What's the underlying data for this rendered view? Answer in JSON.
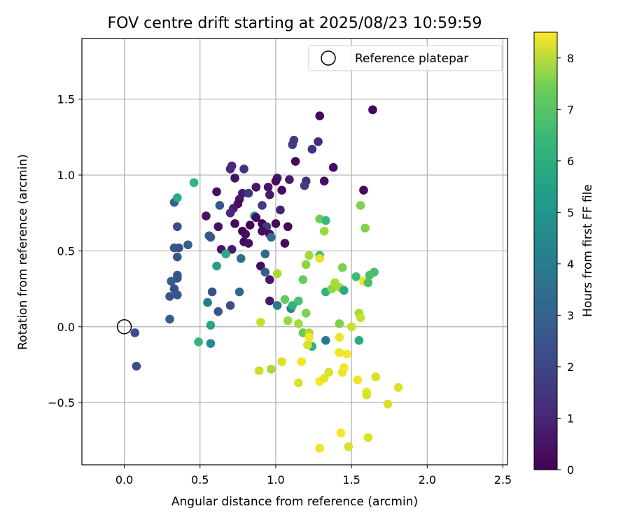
{
  "chart_data": {
    "type": "scatter",
    "title": "FOV centre drift starting at 2025/08/23 10:59:59",
    "xlabel": "Angular distance from reference (arcmin)",
    "ylabel": "Rotation from reference (arcmin)",
    "xlim": [
      -0.28,
      2.53
    ],
    "ylim": [
      -0.91,
      1.9
    ],
    "xticks": [
      "0.0",
      "0.5",
      "1.0",
      "1.5",
      "2.0",
      "2.5"
    ],
    "xtick_values": [
      0,
      0.5,
      1.0,
      1.5,
      2.0,
      2.5
    ],
    "yticks": [
      "−0.5",
      "0.0",
      "0.5",
      "1.0",
      "1.5"
    ],
    "ytick_values": [
      -0.5,
      0,
      0.5,
      1.0,
      1.5
    ],
    "grid": true,
    "legend": {
      "placement": "top-right",
      "entries": [
        "Reference platepar"
      ]
    },
    "reference": {
      "name": "Reference platepar",
      "x": 0,
      "y": 0
    },
    "colorbar": {
      "label": "Hours from first FF file",
      "range": [
        0,
        8.5
      ],
      "ticks": [
        "0",
        "1",
        "2",
        "3",
        "4",
        "5",
        "6",
        "7",
        "8"
      ],
      "tick_values": [
        0,
        1,
        2,
        3,
        4,
        5,
        6,
        7,
        8
      ],
      "colormap": "viridis"
    },
    "points": [
      {
        "x": 1.64,
        "y": 1.43,
        "h": 0.2
      },
      {
        "x": 1.29,
        "y": 1.39,
        "h": 0.2
      },
      {
        "x": 1.28,
        "y": 1.22,
        "h": 1.0
      },
      {
        "x": 1.24,
        "y": 1.17,
        "h": 1.2
      },
      {
        "x": 1.12,
        "y": 1.23,
        "h": 1.5
      },
      {
        "x": 1.11,
        "y": 1.2,
        "h": 1.5
      },
      {
        "x": 1.38,
        "y": 1.05,
        "h": 0.3
      },
      {
        "x": 1.13,
        "y": 1.09,
        "h": 0.2
      },
      {
        "x": 0.71,
        "y": 1.06,
        "h": 1.0
      },
      {
        "x": 0.7,
        "y": 1.04,
        "h": 1.0
      },
      {
        "x": 0.79,
        "y": 1.04,
        "h": 1.2
      },
      {
        "x": 0.73,
        "y": 0.98,
        "h": 0.4
      },
      {
        "x": 1.01,
        "y": 0.98,
        "h": 0.5
      },
      {
        "x": 1.0,
        "y": 0.96,
        "h": 0.3
      },
      {
        "x": 1.09,
        "y": 0.97,
        "h": 0.6
      },
      {
        "x": 1.2,
        "y": 0.96,
        "h": 1.2
      },
      {
        "x": 1.19,
        "y": 0.93,
        "h": 1.5
      },
      {
        "x": 1.32,
        "y": 0.96,
        "h": 0.3
      },
      {
        "x": 1.58,
        "y": 0.9,
        "h": 0.2
      },
      {
        "x": 0.61,
        "y": 0.89,
        "h": 0.3
      },
      {
        "x": 0.78,
        "y": 0.88,
        "h": 0.7
      },
      {
        "x": 0.82,
        "y": 0.88,
        "h": 1.4
      },
      {
        "x": 0.95,
        "y": 0.92,
        "h": 0.5
      },
      {
        "x": 0.96,
        "y": 0.87,
        "h": 0.6
      },
      {
        "x": 1.04,
        "y": 0.9,
        "h": 0.3
      },
      {
        "x": 0.87,
        "y": 0.92,
        "h": 0.5
      },
      {
        "x": 0.76,
        "y": 0.84,
        "h": 0.5
      },
      {
        "x": 0.75,
        "y": 0.81,
        "h": 0.3
      },
      {
        "x": 0.91,
        "y": 0.8,
        "h": 1.5
      },
      {
        "x": 0.33,
        "y": 0.82,
        "h": 2.5
      },
      {
        "x": 0.35,
        "y": 0.85,
        "h": 5.2
      },
      {
        "x": 0.63,
        "y": 0.8,
        "h": 2.3
      },
      {
        "x": 0.46,
        "y": 0.95,
        "h": 5.5
      },
      {
        "x": 0.72,
        "y": 0.78,
        "h": 0.6
      },
      {
        "x": 0.7,
        "y": 0.75,
        "h": 1.0
      },
      {
        "x": 1.03,
        "y": 0.77,
        "h": 0.8
      },
      {
        "x": 0.54,
        "y": 0.73,
        "h": 0.4
      },
      {
        "x": 0.86,
        "y": 0.73,
        "h": 4.5
      },
      {
        "x": 0.87,
        "y": 0.72,
        "h": 0.2
      },
      {
        "x": 0.73,
        "y": 0.68,
        "h": 0.2
      },
      {
        "x": 0.62,
        "y": 0.66,
        "h": 0.4
      },
      {
        "x": 0.35,
        "y": 0.66,
        "h": 2.0
      },
      {
        "x": 0.83,
        "y": 0.67,
        "h": 0.1
      },
      {
        "x": 0.91,
        "y": 0.68,
        "h": 0.1
      },
      {
        "x": 0.94,
        "y": 0.66,
        "h": 1.5
      },
      {
        "x": 0.96,
        "y": 0.61,
        "h": 0.2
      },
      {
        "x": 1.0,
        "y": 0.68,
        "h": 0.3
      },
      {
        "x": 1.08,
        "y": 0.66,
        "h": 0.2
      },
      {
        "x": 0.78,
        "y": 0.63,
        "h": 0.1
      },
      {
        "x": 0.8,
        "y": 0.61,
        "h": 0.3
      },
      {
        "x": 0.91,
        "y": 0.63,
        "h": 0.3
      },
      {
        "x": 0.97,
        "y": 0.59,
        "h": 3.0
      },
      {
        "x": 0.56,
        "y": 0.6,
        "h": 2.5
      },
      {
        "x": 0.57,
        "y": 0.59,
        "h": 2.3
      },
      {
        "x": 0.79,
        "y": 0.56,
        "h": 0.2
      },
      {
        "x": 0.82,
        "y": 0.55,
        "h": 0.4
      },
      {
        "x": 1.06,
        "y": 0.55,
        "h": 0.3
      },
      {
        "x": 0.33,
        "y": 0.52,
        "h": 2.3
      },
      {
        "x": 0.36,
        "y": 0.52,
        "h": 2.1
      },
      {
        "x": 0.42,
        "y": 0.54,
        "h": 2.5
      },
      {
        "x": 0.64,
        "y": 0.51,
        "h": 0.5
      },
      {
        "x": 0.71,
        "y": 0.51,
        "h": 0.6
      },
      {
        "x": 0.35,
        "y": 0.46,
        "h": 2.3
      },
      {
        "x": 0.77,
        "y": 0.45,
        "h": 3.0
      },
      {
        "x": 0.93,
        "y": 0.48,
        "h": 3.0
      },
      {
        "x": 0.61,
        "y": 0.4,
        "h": 4.8
      },
      {
        "x": 0.9,
        "y": 0.4,
        "h": 0.3
      },
      {
        "x": 0.93,
        "y": 0.36,
        "h": 2.5
      },
      {
        "x": 0.35,
        "y": 0.34,
        "h": 2.3
      },
      {
        "x": 0.35,
        "y": 0.32,
        "h": 2.1
      },
      {
        "x": 0.31,
        "y": 0.3,
        "h": 2.5
      },
      {
        "x": 0.96,
        "y": 0.31,
        "h": 0.5
      },
      {
        "x": 0.33,
        "y": 0.25,
        "h": 2.0
      },
      {
        "x": 0.3,
        "y": 0.2,
        "h": 2.3
      },
      {
        "x": 0.35,
        "y": 0.21,
        "h": 2.3
      },
      {
        "x": 0.58,
        "y": 0.23,
        "h": 2.1
      },
      {
        "x": 0.76,
        "y": 0.23,
        "h": 2.8
      },
      {
        "x": 0.55,
        "y": 0.16,
        "h": 3.5
      },
      {
        "x": 0.7,
        "y": 0.14,
        "h": 2.0
      },
      {
        "x": 0.62,
        "y": 0.1,
        "h": 2.3
      },
      {
        "x": 0.96,
        "y": 0.17,
        "h": 0.6
      },
      {
        "x": 0.3,
        "y": 0.05,
        "h": 2.5
      },
      {
        "x": 0.07,
        "y": -0.04,
        "h": 2.0
      },
      {
        "x": 0.08,
        "y": -0.26,
        "h": 2.0
      },
      {
        "x": 0.57,
        "y": 0.01,
        "h": 5.0
      },
      {
        "x": 0.49,
        "y": -0.1,
        "h": 5.5
      },
      {
        "x": 0.57,
        "y": -0.11,
        "h": 4.0
      },
      {
        "x": 0.67,
        "y": 0.48,
        "h": 5.2
      },
      {
        "x": 1.01,
        "y": 0.14,
        "h": 3.5
      },
      {
        "x": 1.06,
        "y": 0.18,
        "h": 6.5
      },
      {
        "x": 1.1,
        "y": 0.12,
        "h": 3.8
      },
      {
        "x": 1.11,
        "y": 0.14,
        "h": 5.5
      },
      {
        "x": 1.15,
        "y": 0.17,
        "h": 6.0
      },
      {
        "x": 1.08,
        "y": 0.04,
        "h": 7.2
      },
      {
        "x": 1.15,
        "y": 0.02,
        "h": 7.3
      },
      {
        "x": 1.18,
        "y": -0.04,
        "h": 6.5
      },
      {
        "x": 1.2,
        "y": 0.09,
        "h": 6.8
      },
      {
        "x": 1.22,
        "y": -0.04,
        "h": 7.5
      },
      {
        "x": 1.24,
        "y": -0.13,
        "h": 5.5
      },
      {
        "x": 1.33,
        "y": -0.09,
        "h": 3.5
      },
      {
        "x": 1.01,
        "y": 0.35,
        "h": 7.4
      },
      {
        "x": 1.2,
        "y": 0.41,
        "h": 7.0
      },
      {
        "x": 1.22,
        "y": 0.47,
        "h": 7.3
      },
      {
        "x": 1.29,
        "y": 0.47,
        "h": 5.8
      },
      {
        "x": 1.29,
        "y": 0.45,
        "h": 8.2
      },
      {
        "x": 1.18,
        "y": 0.31,
        "h": 6.5
      },
      {
        "x": 1.33,
        "y": 0.23,
        "h": 5.5
      },
      {
        "x": 1.37,
        "y": 0.25,
        "h": 7.0
      },
      {
        "x": 1.39,
        "y": 0.29,
        "h": 7.4
      },
      {
        "x": 1.42,
        "y": 0.26,
        "h": 7.3
      },
      {
        "x": 1.45,
        "y": 0.24,
        "h": 5.2
      },
      {
        "x": 1.44,
        "y": 0.39,
        "h": 6.8
      },
      {
        "x": 1.53,
        "y": 0.33,
        "h": 5.8
      },
      {
        "x": 1.58,
        "y": 0.3,
        "h": 8.3
      },
      {
        "x": 1.61,
        "y": 0.29,
        "h": 6.0
      },
      {
        "x": 1.62,
        "y": 0.34,
        "h": 6.0
      },
      {
        "x": 1.65,
        "y": 0.36,
        "h": 6.0
      },
      {
        "x": 1.29,
        "y": 0.71,
        "h": 6.6
      },
      {
        "x": 1.33,
        "y": 0.7,
        "h": 5.7
      },
      {
        "x": 1.32,
        "y": 0.63,
        "h": 7.2
      },
      {
        "x": 1.56,
        "y": 0.8,
        "h": 6.8
      },
      {
        "x": 1.59,
        "y": 0.65,
        "h": 6.8
      },
      {
        "x": 1.55,
        "y": 0.09,
        "h": 7.3
      },
      {
        "x": 1.56,
        "y": 0.06,
        "h": 7.8
      },
      {
        "x": 1.42,
        "y": 0.02,
        "h": 6.8
      },
      {
        "x": 1.5,
        "y": 0.0,
        "h": 7.8
      },
      {
        "x": 1.55,
        "y": -0.09,
        "h": 5.2
      },
      {
        "x": 1.22,
        "y": -0.07,
        "h": 8.4
      },
      {
        "x": 1.21,
        "y": -0.12,
        "h": 8.0
      },
      {
        "x": 1.42,
        "y": -0.07,
        "h": 8.3
      },
      {
        "x": 0.9,
        "y": 0.03,
        "h": 7.8
      },
      {
        "x": 0.89,
        "y": -0.29,
        "h": 7.8
      },
      {
        "x": 0.97,
        "y": -0.28,
        "h": 7.3
      },
      {
        "x": 1.04,
        "y": -0.23,
        "h": 8.0
      },
      {
        "x": 1.15,
        "y": -0.37,
        "h": 8.0
      },
      {
        "x": 1.17,
        "y": -0.23,
        "h": 8.3
      },
      {
        "x": 1.29,
        "y": -0.36,
        "h": 8.4
      },
      {
        "x": 1.32,
        "y": -0.34,
        "h": 8.2
      },
      {
        "x": 1.35,
        "y": -0.3,
        "h": 8.0
      },
      {
        "x": 1.42,
        "y": -0.17,
        "h": 8.3
      },
      {
        "x": 1.47,
        "y": -0.18,
        "h": 8.4
      },
      {
        "x": 1.44,
        "y": -0.3,
        "h": 8.3
      },
      {
        "x": 1.45,
        "y": -0.27,
        "h": 8.4
      },
      {
        "x": 1.54,
        "y": -0.35,
        "h": 8.3
      },
      {
        "x": 1.6,
        "y": -0.43,
        "h": 8.3
      },
      {
        "x": 1.6,
        "y": -0.45,
        "h": 8.0
      },
      {
        "x": 1.66,
        "y": -0.33,
        "h": 8.0
      },
      {
        "x": 1.74,
        "y": -0.51,
        "h": 8.0
      },
      {
        "x": 1.81,
        "y": -0.4,
        "h": 8.0
      },
      {
        "x": 1.43,
        "y": -0.7,
        "h": 8.4
      },
      {
        "x": 1.61,
        "y": -0.73,
        "h": 8.0
      },
      {
        "x": 1.48,
        "y": -0.79,
        "h": 8.0
      },
      {
        "x": 1.29,
        "y": -0.8,
        "h": 8.3
      }
    ]
  }
}
